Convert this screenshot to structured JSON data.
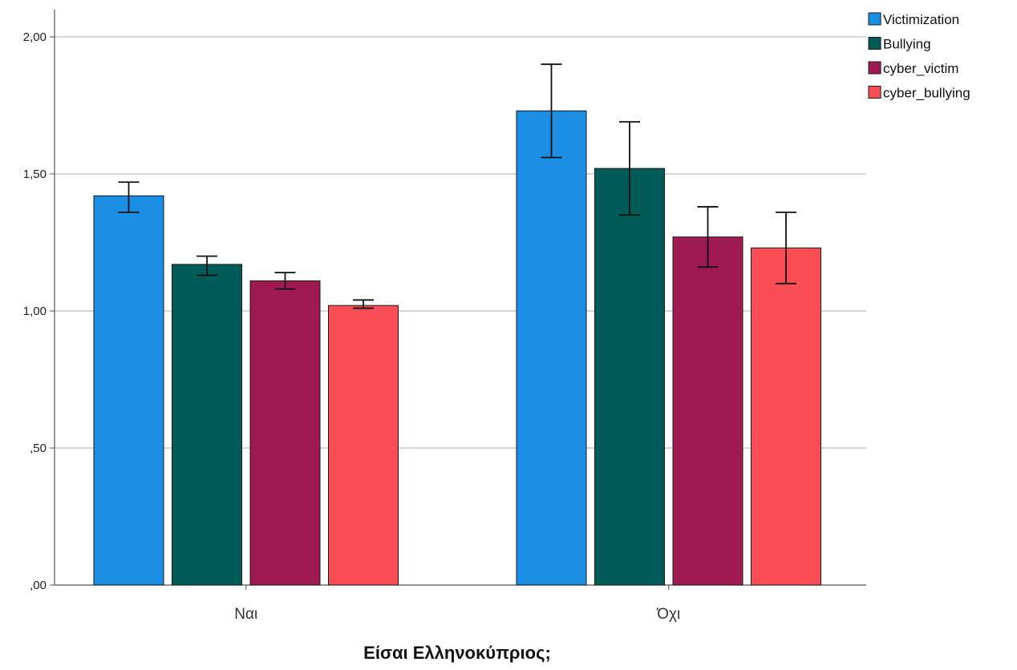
{
  "chart_data": {
    "type": "bar",
    "xlabel": "Είσαι Ελληνοκύπριος;",
    "ylabel": "",
    "ylim": [
      0,
      2.0
    ],
    "yticks": [
      0,
      0.5,
      1.0,
      1.5,
      2.0
    ],
    "ytick_labels": [
      ",00",
      ",50",
      "1,00",
      "1,50",
      "2,00"
    ],
    "grid": true,
    "legend_position": "top-right",
    "categories": [
      "Ναι",
      "Όχι"
    ],
    "series": [
      {
        "name": "Victimization",
        "color": "#1a8fe3",
        "values": [
          1.42,
          1.73
        ],
        "error_low": [
          1.36,
          1.56
        ],
        "error_high": [
          1.47,
          1.9
        ]
      },
      {
        "name": "Bullying",
        "color": "#005c58",
        "values": [
          1.17,
          1.52
        ],
        "error_low": [
          1.13,
          1.35
        ],
        "error_high": [
          1.2,
          1.69
        ]
      },
      {
        "name": "cyber_victim",
        "color": "#9e1a50",
        "values": [
          1.11,
          1.27
        ],
        "error_low": [
          1.08,
          1.16
        ],
        "error_high": [
          1.14,
          1.38
        ]
      },
      {
        "name": "cyber_bullying",
        "color": "#fb4d56",
        "values": [
          1.02,
          1.23
        ],
        "error_low": [
          1.01,
          1.1
        ],
        "error_high": [
          1.04,
          1.36
        ]
      }
    ]
  }
}
